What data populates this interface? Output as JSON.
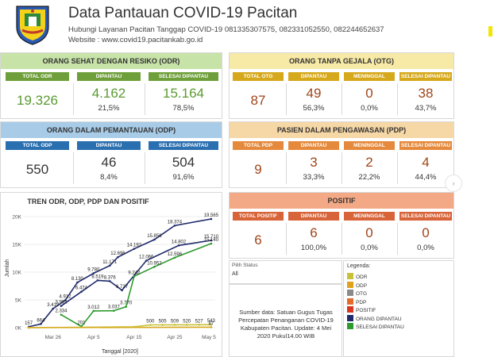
{
  "header": {
    "title": "Data Pantauan COVID-19 Pacitan",
    "hotline": "Hubungi Layanan Pacitan Tanggap COVID-19 081335307575,  082331052550, 082244652637",
    "website": "Website : www.covid19.pacitankab.go.id"
  },
  "odr": {
    "title": "ORANG SEHAT DENGAN RESIKO (ODR)",
    "cols": [
      "TOTAL ODR",
      "DIPANTAU",
      "SELESAI DIPANTAU"
    ],
    "values": [
      "19.326",
      "4.162",
      "15.164"
    ],
    "pcts": [
      "",
      "21,5%",
      "78,5%"
    ]
  },
  "otg": {
    "title": "ORANG TANPA GEJALA (OTG)",
    "cols": [
      "TOTAL OTG",
      "DIPANTAU",
      "MENINGGAL",
      "SELESAI DIPANTAU"
    ],
    "values": [
      "87",
      "49",
      "0",
      "38"
    ],
    "pcts": [
      "",
      "56,3%",
      "0,0%",
      "43,7%"
    ]
  },
  "odp": {
    "title": "ORANG DALAM PEMANTAUAN (ODP)",
    "cols": [
      "TOTAL ODP",
      "DIPANTAU",
      "SELESAI DIPANTAU"
    ],
    "values": [
      "550",
      "46",
      "504"
    ],
    "pcts": [
      "",
      "8,4%",
      "91,6%"
    ]
  },
  "pdp": {
    "title": "PASIEN DALAM PENGAWASAN (PDP)",
    "cols": [
      "TOTAL PDP",
      "DIPANTAU",
      "MENINGGAL",
      "SELESAI DIPANTAU"
    ],
    "values": [
      "9",
      "3",
      "2",
      "4"
    ],
    "pcts": [
      "",
      "33,3%",
      "22,2%",
      "44,4%"
    ]
  },
  "positif": {
    "title": "POSITIF",
    "cols": [
      "TOTAL POSITIF",
      "DIPANTAU",
      "MENINGGAL",
      "SELESAI DIPANTAU"
    ],
    "values": [
      "6",
      "6",
      "0",
      "0"
    ],
    "pcts": [
      "",
      "100,0%",
      "0,0%",
      "0,0%"
    ]
  },
  "filter": {
    "label": "Pilih Status",
    "value": "All"
  },
  "source": {
    "text": "Sumber data: Satuan Gugus Tugas Percepatan Penanganan COVID-19 Kabupaten Pacitan. Update: 4 Mei 2020 Pukul14.00 WIB"
  },
  "legend": {
    "title": "Legenda:",
    "items": [
      {
        "label": "ODR",
        "color": "#c7c23a"
      },
      {
        "label": "ODP",
        "color": "#e0a21d"
      },
      {
        "label": "OTG",
        "color": "#8a8a8a"
      },
      {
        "label": "PDP",
        "color": "#e36b2c"
      },
      {
        "label": "POSITIF",
        "color": "#d9351f"
      },
      {
        "label": "ORANG DIPANTAU",
        "color": "#1f2a6b"
      },
      {
        "label": "SELESAI DIPANTAU",
        "color": "#2e9a2e"
      }
    ]
  },
  "chart_data": {
    "type": "line",
    "title": "TREN ODR, ODP, PDP DAN POSITIF",
    "xlabel": "Tanggal [2020]",
    "ylabel": "Jumlah",
    "x_ticks": [
      "Mar 26",
      "Apr 5",
      "Apr 15",
      "Apr 25",
      "May 5"
    ],
    "y_ticks": [
      "0K",
      "5K",
      "10K",
      "15K",
      "20K"
    ],
    "ylim": [
      0,
      20000
    ],
    "x_range": [
      "2020-03-19",
      "2020-05-05"
    ],
    "series": [
      {
        "name": "ORANG DIPANTAU",
        "color": "#1f2a6b",
        "points": [
          [
            "2020-03-20",
            157
          ],
          [
            "2020-03-23",
            664
          ],
          [
            "2020-03-26",
            3419
          ],
          [
            "2020-03-29",
            4912
          ],
          [
            "2020-04-01",
            8130
          ],
          [
            "2020-04-05",
            9780
          ],
          [
            "2020-04-09",
            11171
          ],
          [
            "2020-04-11",
            12696
          ],
          [
            "2020-04-15",
            14192
          ],
          [
            "2020-04-20",
            15856
          ],
          [
            "2020-04-25",
            18374
          ],
          [
            "2020-05-04",
            19565
          ]
        ],
        "labels": [
          "157",
          "664",
          "3.419",
          "4.912",
          "8.130",
          "9.780",
          "11.171",
          "12.696",
          "14.192",
          "15.856",
          "18.374",
          "19.565"
        ]
      },
      {
        "name": "ORANG DIPANTAU (lower)",
        "color": "#1f2a6b",
        "points": [
          [
            "2020-03-28",
            3902
          ],
          [
            "2020-04-02",
            6474
          ],
          [
            "2020-04-06",
            8519
          ],
          [
            "2020-04-09",
            8376
          ],
          [
            "2020-04-12",
            6727
          ],
          [
            "2020-04-18",
            12066
          ],
          [
            "2020-04-26",
            14802
          ],
          [
            "2020-05-04",
            15710
          ]
        ],
        "labels": [
          "3.902",
          "6.474",
          "8.519",
          "8.376",
          "6.727",
          "12.066",
          "14.802",
          "15.710"
        ]
      },
      {
        "name": "SELESAI DIPANTAU",
        "color": "#2e9a2e",
        "points": [
          [
            "2020-03-28",
            2334
          ],
          [
            "2020-04-02",
            201
          ],
          [
            "2020-04-05",
            3012
          ],
          [
            "2020-04-10",
            3037
          ],
          [
            "2020-04-13",
            3770
          ],
          [
            "2020-04-15",
            9242
          ],
          [
            "2020-04-20",
            10952
          ],
          [
            "2020-04-25",
            12596
          ],
          [
            "2020-05-04",
            15140
          ]
        ],
        "labels": [
          "2.334",
          "201",
          "3.012",
          "3.037",
          "3.770",
          "9.242",
          "10.952",
          "12.596",
          "15.140"
        ]
      },
      {
        "name": "ODR",
        "color": "#c7c23a",
        "points": [
          [
            "2020-03-20",
            0
          ],
          [
            "2020-04-15",
            150
          ],
          [
            "2020-04-19",
            500
          ],
          [
            "2020-04-22",
            505
          ],
          [
            "2020-04-25",
            509
          ],
          [
            "2020-04-28",
            520
          ],
          [
            "2020-05-01",
            527
          ],
          [
            "2020-05-04",
            543
          ]
        ],
        "labels": [
          "",
          "",
          "500",
          "505",
          "509",
          "520",
          "527",
          "543"
        ]
      },
      {
        "name": "OTG",
        "color": "#d6a81c",
        "points": [
          [
            "2020-03-20",
            0
          ],
          [
            "2020-05-04",
            87
          ]
        ],
        "labels": [
          "",
          "87"
        ]
      }
    ]
  }
}
